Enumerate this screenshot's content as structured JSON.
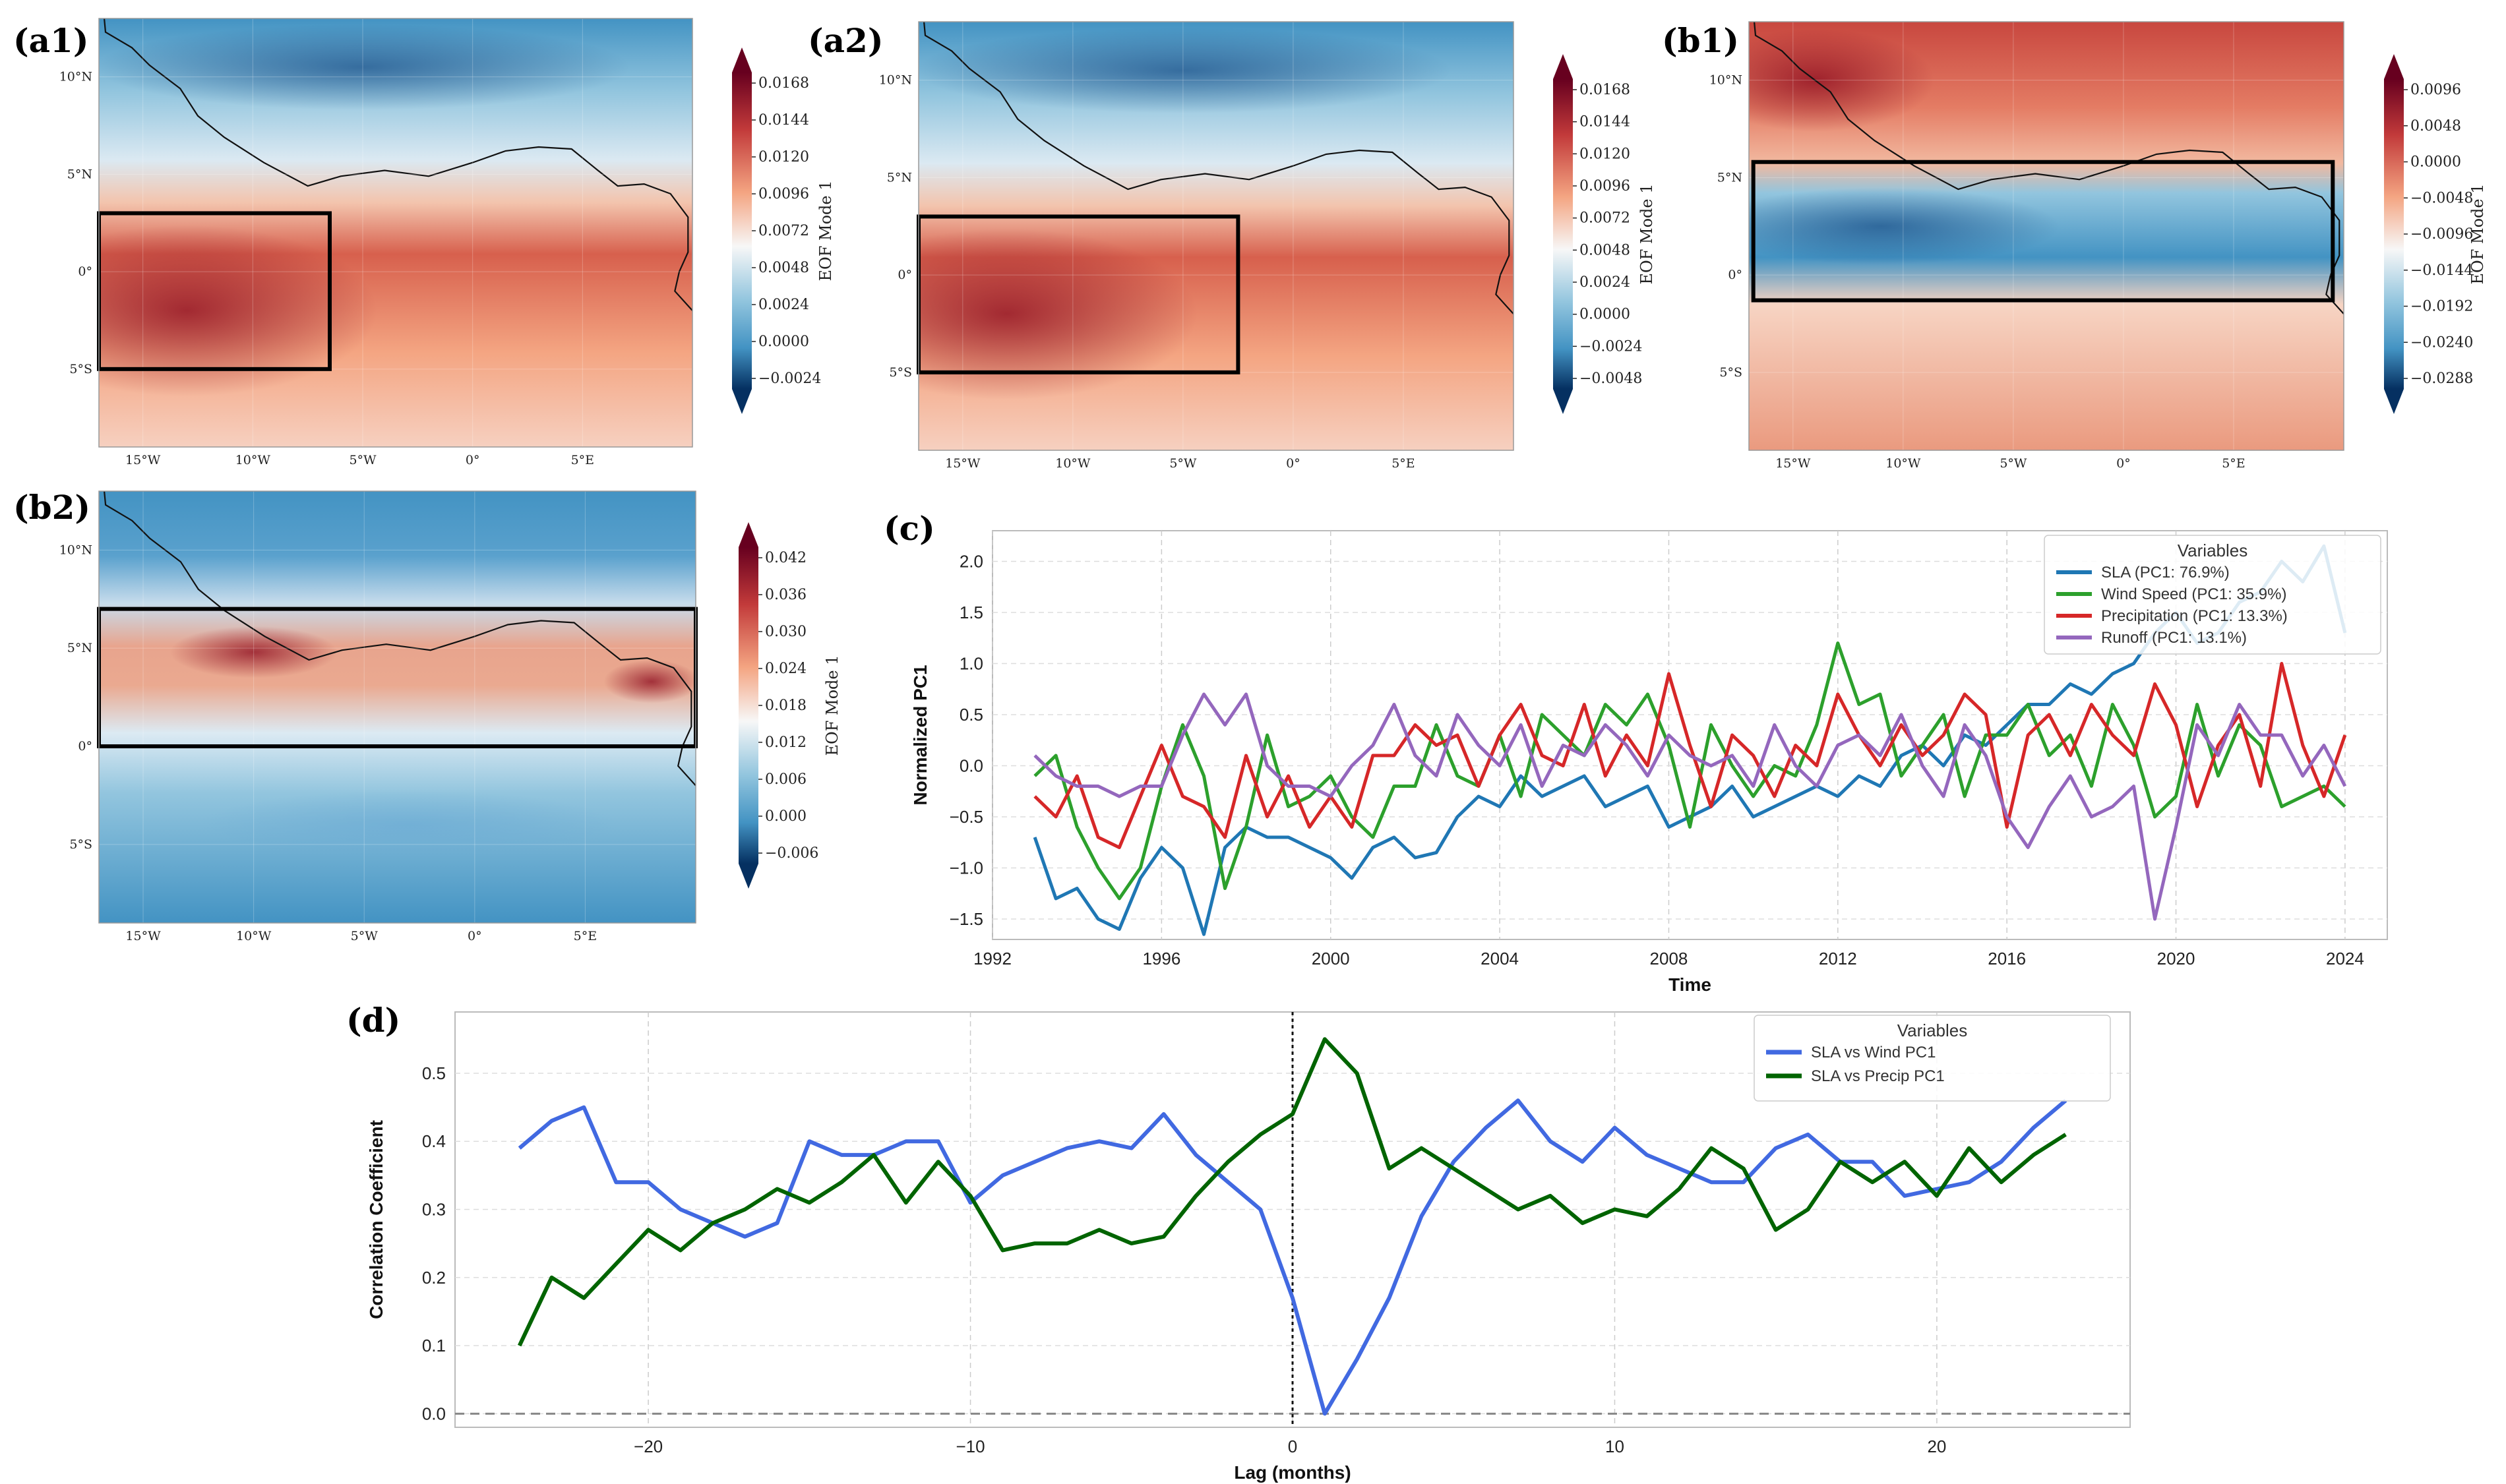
{
  "panels": {
    "a1": "(a1)",
    "a2": "(a2)",
    "b1": "(b1)",
    "b2": "(b2)",
    "c": "(c)",
    "d": "(d)"
  },
  "colors": {
    "red_dark": "#67001f",
    "red": "#c23a3a",
    "red_light": "#f4a582",
    "white": "#f7f7f7",
    "blue_light": "#92c5de",
    "blue": "#4393c3",
    "blue_dark": "#053061",
    "sla": "#1f77b4",
    "wind": "#2ca02c",
    "precip": "#d62728",
    "runoff": "#9467bd",
    "wind_pc1": "#4169e1",
    "precip_pc1": "#006400"
  },
  "maps": [
    {
      "id": "a1",
      "lat_ticks": [
        "10°N",
        "5°N",
        "0°",
        "5°S"
      ],
      "lon_ticks": [
        "15°W",
        "10°W",
        "5°W",
        "0°",
        "5°E"
      ],
      "colorbar_label": "EOF Mode 1",
      "colorbar_ticks": [
        "0.0168",
        "0.0144",
        "0.0120",
        "0.0096",
        "0.0072",
        "0.0048",
        "0.0024",
        "0.0000",
        "−0.0024"
      ],
      "pattern": "south_red"
    },
    {
      "id": "a2",
      "lat_ticks": [
        "10°N",
        "5°N",
        "0°",
        "5°S"
      ],
      "lon_ticks": [
        "15°W",
        "10°W",
        "5°W",
        "0°",
        "5°E"
      ],
      "colorbar_label": "EOF Mode 1",
      "colorbar_ticks": [
        "0.0168",
        "0.0144",
        "0.0120",
        "0.0096",
        "0.0072",
        "0.0048",
        "0.0024",
        "0.0000",
        "−0.0024",
        "−0.0048"
      ],
      "pattern": "south_red"
    },
    {
      "id": "b1",
      "lat_ticks": [
        "10°N",
        "5°N",
        "0°",
        "5°S"
      ],
      "lon_ticks": [
        "15°W",
        "10°W",
        "5°W",
        "0°",
        "5°E"
      ],
      "colorbar_label": "EOF Mode 1",
      "colorbar_ticks": [
        "0.0096",
        "0.0048",
        "0.0000",
        "−0.0048",
        "−0.0096",
        "−0.0144",
        "−0.0192",
        "−0.0240",
        "−0.0288"
      ],
      "pattern": "band_blue"
    },
    {
      "id": "b2",
      "lat_ticks": [
        "10°N",
        "5°N",
        "0°",
        "5°S"
      ],
      "lon_ticks": [
        "15°W",
        "10°W",
        "5°W",
        "0°",
        "5°E"
      ],
      "colorbar_label": "EOF Mode 1",
      "colorbar_ticks": [
        "0.042",
        "0.036",
        "0.030",
        "0.024",
        "0.018",
        "0.012",
        "0.006",
        "0.000",
        "−0.006"
      ],
      "pattern": "band_red"
    }
  ],
  "chart_data": [
    {
      "id": "c",
      "type": "line",
      "title": "",
      "xlabel": "Time",
      "ylabel": "Normalized PC1",
      "xlim": [
        1992,
        2025
      ],
      "ylim": [
        -1.7,
        2.3
      ],
      "xticks": [
        1992,
        1996,
        2000,
        2004,
        2008,
        2012,
        2016,
        2020,
        2024
      ],
      "yticks": [
        -1.5,
        -1.0,
        -0.5,
        0.0,
        0.5,
        1.0,
        1.5,
        2.0
      ],
      "ytick_labels": [
        "−1.5",
        "−1.0",
        "−0.5",
        "0.0",
        "0.5",
        "1.0",
        "1.5",
        "2.0"
      ],
      "legend_title": "Variables",
      "x": [
        1993,
        1993.5,
        1994,
        1994.5,
        1995,
        1995.5,
        1996,
        1996.5,
        1997,
        1997.5,
        1998,
        1998.5,
        1999,
        1999.5,
        2000,
        2000.5,
        2001,
        2001.5,
        2002,
        2002.5,
        2003,
        2003.5,
        2004,
        2004.5,
        2005,
        2005.5,
        2006,
        2006.5,
        2007,
        2007.5,
        2008,
        2008.5,
        2009,
        2009.5,
        2010,
        2010.5,
        2011,
        2011.5,
        2012,
        2012.5,
        2013,
        2013.5,
        2014,
        2014.5,
        2015,
        2015.5,
        2016,
        2016.5,
        2017,
        2017.5,
        2018,
        2018.5,
        2019,
        2019.5,
        2020,
        2020.5,
        2021,
        2021.5,
        2022,
        2022.5,
        2023,
        2023.5,
        2024
      ],
      "series": [
        {
          "name": "SLA (PC1: 76.9%)",
          "color": "#1f77b4",
          "values": [
            -0.7,
            -1.3,
            -1.2,
            -1.5,
            -1.6,
            -1.1,
            -0.8,
            -1.0,
            -1.65,
            -0.8,
            -0.6,
            -0.7,
            -0.7,
            -0.8,
            -0.9,
            -1.1,
            -0.8,
            -0.7,
            -0.9,
            -0.85,
            -0.5,
            -0.3,
            -0.4,
            -0.1,
            -0.3,
            -0.2,
            -0.1,
            -0.4,
            -0.3,
            -0.2,
            -0.6,
            -0.5,
            -0.4,
            -0.2,
            -0.5,
            -0.4,
            -0.3,
            -0.2,
            -0.3,
            -0.1,
            -0.2,
            0.1,
            0.2,
            0.0,
            0.3,
            0.2,
            0.4,
            0.6,
            0.6,
            0.8,
            0.7,
            0.9,
            1.0,
            1.3,
            1.5,
            1.2,
            1.3,
            1.6,
            1.7,
            2.0,
            1.8,
            2.15,
            1.3
          ]
        },
        {
          "name": "Wind Speed (PC1: 35.9%)",
          "color": "#2ca02c",
          "values": [
            -0.1,
            0.1,
            -0.6,
            -1.0,
            -1.3,
            -1.0,
            -0.2,
            0.4,
            -0.1,
            -1.2,
            -0.6,
            0.3,
            -0.4,
            -0.3,
            -0.1,
            -0.5,
            -0.7,
            -0.2,
            -0.2,
            0.4,
            -0.1,
            -0.2,
            0.3,
            -0.3,
            0.5,
            0.3,
            0.1,
            0.6,
            0.4,
            0.7,
            0.2,
            -0.6,
            0.4,
            0.0,
            -0.3,
            0.0,
            -0.1,
            0.4,
            1.2,
            0.6,
            0.7,
            -0.1,
            0.2,
            0.5,
            -0.3,
            0.3,
            0.3,
            0.6,
            0.1,
            0.3,
            -0.2,
            0.6,
            0.2,
            -0.5,
            -0.3,
            0.6,
            -0.1,
            0.4,
            0.2,
            -0.4,
            -0.3,
            -0.2,
            -0.4
          ]
        },
        {
          "name": "Precipitation (PC1: 13.3%)",
          "color": "#d62728",
          "values": [
            -0.3,
            -0.5,
            -0.1,
            -0.7,
            -0.8,
            -0.3,
            0.2,
            -0.3,
            -0.4,
            -0.7,
            0.1,
            -0.5,
            -0.1,
            -0.6,
            -0.3,
            -0.6,
            0.1,
            0.1,
            0.4,
            0.2,
            0.3,
            -0.2,
            0.3,
            0.6,
            0.1,
            0.0,
            0.6,
            -0.1,
            0.3,
            0.0,
            0.9,
            0.2,
            -0.4,
            0.3,
            0.1,
            -0.3,
            0.2,
            0.0,
            0.7,
            0.3,
            0.0,
            0.4,
            0.1,
            0.3,
            0.7,
            0.5,
            -0.6,
            0.3,
            0.5,
            0.1,
            0.6,
            0.3,
            0.1,
            0.8,
            0.4,
            -0.4,
            0.2,
            0.5,
            -0.2,
            1.0,
            0.2,
            -0.3,
            0.3
          ]
        },
        {
          "name": "Runoff (PC1: 13.1%)",
          "color": "#9467bd",
          "values": [
            0.1,
            -0.1,
            -0.2,
            -0.2,
            -0.3,
            -0.2,
            -0.2,
            0.3,
            0.7,
            0.4,
            0.7,
            0.0,
            -0.2,
            -0.2,
            -0.3,
            0.0,
            0.2,
            0.6,
            0.1,
            -0.1,
            0.5,
            0.2,
            0.0,
            0.4,
            -0.2,
            0.2,
            0.1,
            0.4,
            0.2,
            -0.1,
            0.3,
            0.1,
            0.0,
            0.1,
            -0.2,
            0.4,
            0.0,
            -0.2,
            0.2,
            0.3,
            0.1,
            0.5,
            0.0,
            -0.3,
            0.4,
            0.1,
            -0.5,
            -0.8,
            -0.4,
            -0.1,
            -0.5,
            -0.4,
            -0.2,
            -1.5,
            -0.6,
            0.4,
            0.1,
            0.6,
            0.3,
            0.3,
            -0.1,
            0.2,
            -0.2
          ]
        }
      ]
    },
    {
      "id": "d",
      "type": "line",
      "title": "",
      "xlabel": "Lag (months)",
      "ylabel": "Correlation Coefficient",
      "xlim": [
        -26,
        26
      ],
      "ylim": [
        -0.02,
        0.59
      ],
      "xticks": [
        -20,
        -10,
        0,
        10,
        20
      ],
      "xtick_labels": [
        "−20",
        "−10",
        "0",
        "10",
        "20"
      ],
      "yticks": [
        0.0,
        0.1,
        0.2,
        0.3,
        0.4,
        0.5
      ],
      "ytick_labels": [
        "0.0",
        "0.1",
        "0.2",
        "0.3",
        "0.4",
        "0.5"
      ],
      "legend_title": "Variables",
      "x": [
        -24,
        -23,
        -22,
        -21,
        -20,
        -19,
        -18,
        -17,
        -16,
        -15,
        -14,
        -13,
        -12,
        -11,
        -10,
        -9,
        -8,
        -7,
        -6,
        -5,
        -4,
        -3,
        -2,
        -1,
        0,
        1,
        2,
        3,
        4,
        5,
        6,
        7,
        8,
        9,
        10,
        11,
        12,
        13,
        14,
        15,
        16,
        17,
        18,
        19,
        20,
        21,
        22,
        23,
        24
      ],
      "series": [
        {
          "name": "SLA vs Wind PC1",
          "color": "#4169e1",
          "values": [
            0.39,
            0.43,
            0.45,
            0.34,
            0.34,
            0.3,
            0.28,
            0.26,
            0.28,
            0.4,
            0.38,
            0.38,
            0.4,
            0.4,
            0.31,
            0.35,
            0.37,
            0.39,
            0.4,
            0.39,
            0.44,
            0.38,
            0.34,
            0.3,
            0.17,
            0.0,
            0.08,
            0.17,
            0.29,
            0.37,
            0.42,
            0.46,
            0.4,
            0.37,
            0.42,
            0.38,
            0.36,
            0.34,
            0.34,
            0.39,
            0.41,
            0.37,
            0.37,
            0.32,
            0.33,
            0.34,
            0.37,
            0.42,
            0.46
          ]
        },
        {
          "name": "SLA vs Precip PC1",
          "color": "#006400",
          "values": [
            0.1,
            0.2,
            0.17,
            0.22,
            0.27,
            0.24,
            0.28,
            0.3,
            0.33,
            0.31,
            0.34,
            0.38,
            0.31,
            0.37,
            0.32,
            0.24,
            0.25,
            0.25,
            0.27,
            0.25,
            0.26,
            0.32,
            0.37,
            0.41,
            0.44,
            0.55,
            0.5,
            0.36,
            0.39,
            0.36,
            0.33,
            0.3,
            0.32,
            0.28,
            0.3,
            0.29,
            0.33,
            0.39,
            0.36,
            0.27,
            0.3,
            0.37,
            0.34,
            0.37,
            0.32,
            0.39,
            0.34,
            0.38,
            0.41
          ]
        }
      ]
    }
  ]
}
